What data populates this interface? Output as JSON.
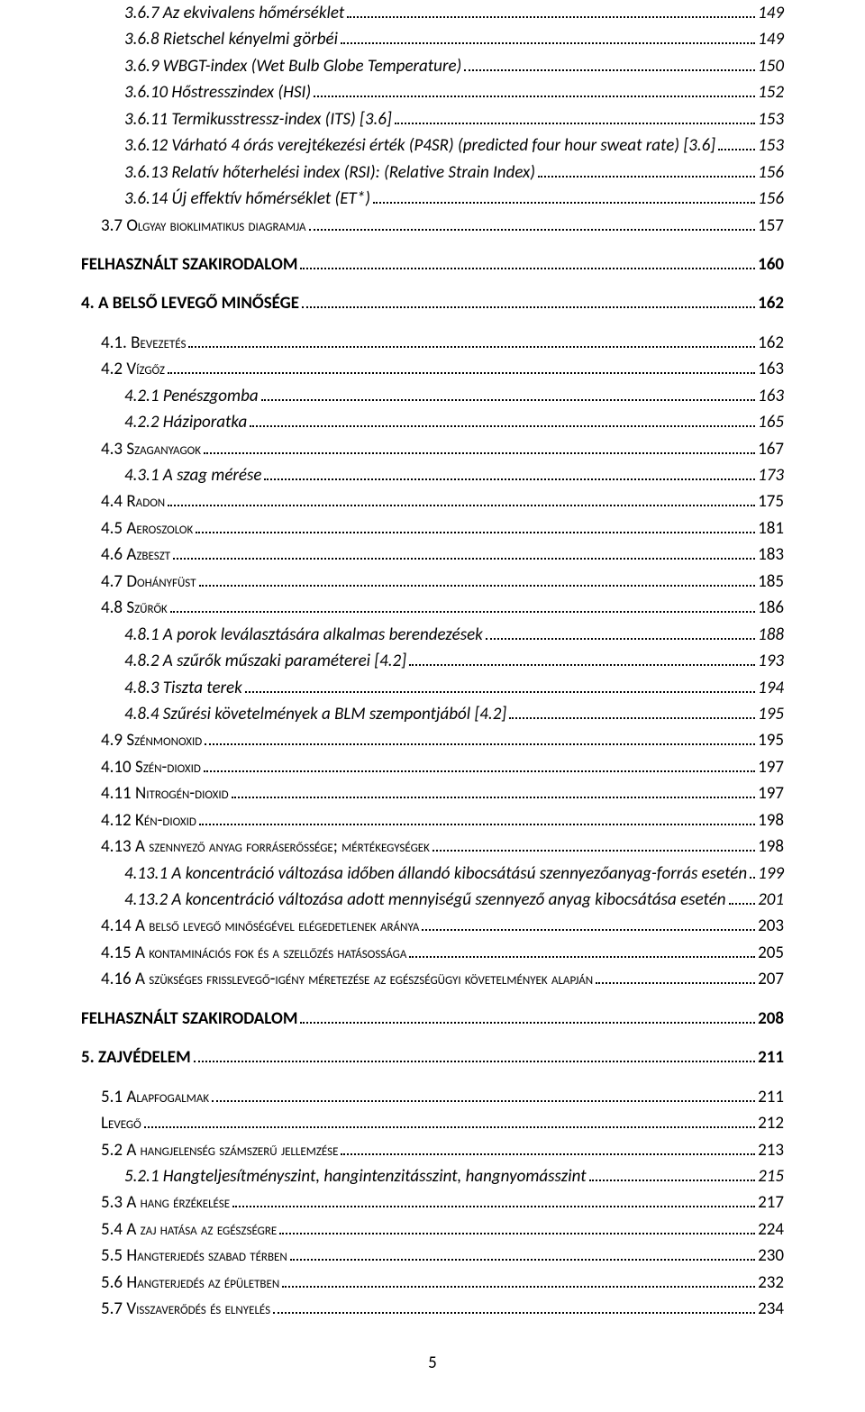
{
  "page_number": "5",
  "toc": [
    {
      "level": 3,
      "label": "3.6.7 Az ekvivalens hőmérséklet",
      "page": "149"
    },
    {
      "level": 3,
      "label": "3.6.8 Rietschel kényelmi görbéi",
      "page": "149"
    },
    {
      "level": 3,
      "label": "3.6.9 WBGT-index (Wet Bulb Globe Temperature)",
      "page": "150"
    },
    {
      "level": 3,
      "label": "3.6.10 Hőstresszindex (HSI)",
      "page": "152"
    },
    {
      "level": 3,
      "label": "3.6.11 Termikusstressz-index (ITS) [3.6]",
      "page": "153"
    },
    {
      "level": 3,
      "label": "3.6.12 Várható 4 órás verejtékezési érték (P4SR) (predicted four hour sweat rate) [3.6]",
      "page": "153"
    },
    {
      "level": 3,
      "label": "3.6.13 Relatív hőterhelési index (RSI): (Relative Strain Index)",
      "page": "156"
    },
    {
      "level": 3,
      "label": "3.6.14 Új effektív hőmérséklet (ET*)",
      "page": "156"
    },
    {
      "level": 2,
      "smallcaps": true,
      "label": "3.7 Olgyay bioklimatikus diagramja",
      "page": "157"
    },
    {
      "level": 1,
      "label": "FELHASZNÁLT SZAKIRODALOM",
      "page": "160"
    },
    {
      "level": 1,
      "label": "4. A BELSŐ LEVEGŐ MINŐSÉGE",
      "page": "162"
    },
    {
      "level": 2,
      "smallcaps": true,
      "label": "4.1. Bevezetés",
      "page": "162"
    },
    {
      "level": 2,
      "smallcaps": true,
      "label": "4.2 Vízgőz",
      "page": "163"
    },
    {
      "level": 3,
      "label": "4.2.1 Penészgomba",
      "page": "163"
    },
    {
      "level": 3,
      "label": "4.2.2 Háziporatka",
      "page": "165"
    },
    {
      "level": 2,
      "smallcaps": true,
      "label": "4.3 Szaganyagok",
      "page": "167"
    },
    {
      "level": 3,
      "label": "4.3.1 A szag mérése",
      "page": "173"
    },
    {
      "level": 2,
      "smallcaps": true,
      "label": "4.4 Radon",
      "page": "175"
    },
    {
      "level": 2,
      "smallcaps": true,
      "label": "4.5 Aeroszolok",
      "page": "181"
    },
    {
      "level": 2,
      "smallcaps": true,
      "label": "4.6 Azbeszt",
      "page": "183"
    },
    {
      "level": 2,
      "smallcaps": true,
      "label": "4.7 Dohányfüst",
      "page": "185"
    },
    {
      "level": 2,
      "smallcaps": true,
      "label": "4.8 Szűrők",
      "page": "186"
    },
    {
      "level": 3,
      "label": "4.8.1 A porok leválasztására alkalmas berendezések",
      "page": "188"
    },
    {
      "level": 3,
      "label": "4.8.2 A szűrők műszaki paraméterei [4.2]",
      "page": "193"
    },
    {
      "level": 3,
      "label": "4.8.3 Tiszta terek",
      "page": "194"
    },
    {
      "level": 3,
      "label": "4.8.4 Szűrési követelmények a BLM szempontjából [4.2]",
      "page": "195"
    },
    {
      "level": 2,
      "smallcaps": true,
      "label": "4.9 Szénmonoxid",
      "page": "195"
    },
    {
      "level": 2,
      "smallcaps": true,
      "label": "4.10 Szén-dioxid",
      "page": "197"
    },
    {
      "level": 2,
      "smallcaps": true,
      "label": "4.11 Nitrogén-dioxid",
      "page": "197"
    },
    {
      "level": 2,
      "smallcaps": true,
      "label": "4.12 Kén-dioxid",
      "page": "198"
    },
    {
      "level": 2,
      "smallcaps": true,
      "label": "4.13 A szennyező anyag forráserőssége; mértékegységek",
      "page": "198"
    },
    {
      "level": 3,
      "label": "4.13.1 A koncentráció változása időben állandó kibocsátású szennyezőanyag-forrás esetén",
      "page": "199"
    },
    {
      "level": 3,
      "label": "4.13.2 A koncentráció változása adott mennyiségű szennyező anyag kibocsátása esetén",
      "page": "201"
    },
    {
      "level": 2,
      "smallcaps": true,
      "label": "4.14 A belső levegő minőségével elégedetlenek aránya",
      "page": "203"
    },
    {
      "level": 2,
      "smallcaps": true,
      "label": "4.15 A kontaminációs fok és a szellőzés hatásossága",
      "page": "205"
    },
    {
      "level": 2,
      "smallcaps": true,
      "label": "4.16 A szükséges frisslevegő-igény méretezése az egészségügyi követelmények alapján",
      "page": "207"
    },
    {
      "level": 1,
      "label": "FELHASZNÁLT SZAKIRODALOM",
      "page": "208"
    },
    {
      "level": 1,
      "label": "5. ZAJVÉDELEM",
      "page": "211"
    },
    {
      "level": 2,
      "smallcaps": true,
      "label": "5.1 Alapfogalmak",
      "page": "211"
    },
    {
      "level": 2,
      "smallcaps": true,
      "label": "Levegő",
      "page": "212"
    },
    {
      "level": 2,
      "smallcaps": true,
      "label": "5.2 A hangjelenség számszerű jellemzése",
      "page": "213"
    },
    {
      "level": 3,
      "label": "5.2.1 Hangteljesítményszint, hangintenzitásszint, hangnyomásszint",
      "page": "215"
    },
    {
      "level": 2,
      "smallcaps": true,
      "label": "5.3 A hang érzékelése",
      "page": "217"
    },
    {
      "level": 2,
      "smallcaps": true,
      "label": "5.4 A zaj hatása az egészségre",
      "page": "224"
    },
    {
      "level": 2,
      "smallcaps": true,
      "label": "5.5 Hangterjedés szabad térben",
      "page": "230"
    },
    {
      "level": 2,
      "smallcaps": true,
      "label": "5.6 Hangterjedés az épületben",
      "page": "232"
    },
    {
      "level": 2,
      "smallcaps": true,
      "label": "5.7 Visszaverődés és elnyelés",
      "page": "234"
    }
  ]
}
